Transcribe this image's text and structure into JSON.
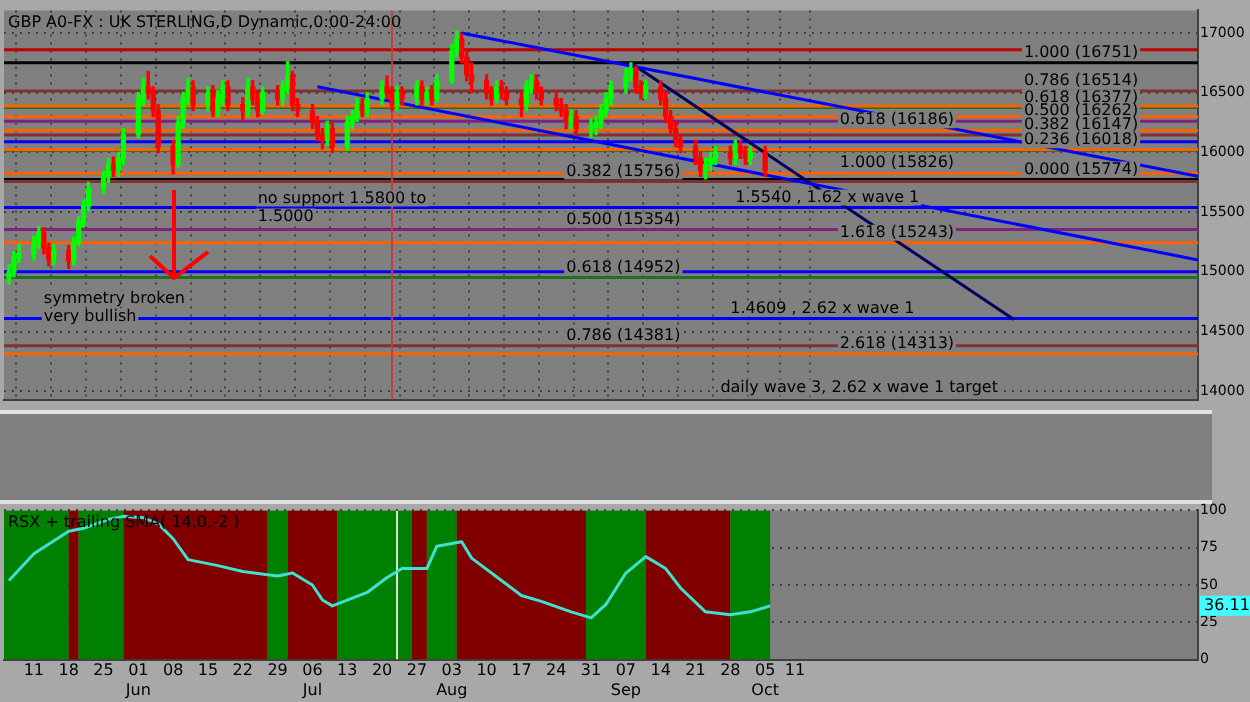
{
  "chart_data": [
    {
      "type": "candlestick",
      "title": "GBP A0-FX : UK STERLING,D Dynamic,0:00-24:00",
      "x": [
        "--05-06",
        "--05-07",
        "--05-08",
        "--05-11",
        "--05-12",
        "--05-13",
        "--05-14",
        "--05-15",
        "--05-18",
        "--05-19",
        "--05-20",
        "--05-21",
        "--05-22",
        "--05-25",
        "--05-26",
        "--05-27",
        "--05-28",
        "--05-29",
        "--06-01",
        "--06-02",
        "--06-03",
        "--06-04",
        "--06-05",
        "--06-08",
        "--06-09",
        "--06-10",
        "--06-11",
        "--06-12",
        "--06-15",
        "--06-16",
        "--06-17",
        "--06-18",
        "--06-19",
        "--06-22",
        "--06-23",
        "--06-24",
        "--06-25",
        "--06-26",
        "--06-29",
        "--06-30",
        "--07-01",
        "--07-02",
        "--07-03",
        "--07-06",
        "--07-07",
        "--07-08",
        "--07-09",
        "--07-10",
        "--07-13",
        "--07-14",
        "--07-15",
        "--07-16",
        "--07-17",
        "--07-20",
        "--07-21",
        "--07-22",
        "--07-23",
        "--07-24",
        "--07-27",
        "--07-28",
        "--07-29",
        "--07-30",
        "--07-31",
        "--08-03",
        "--08-04",
        "--08-05",
        "--08-06",
        "--08-07",
        "--08-10",
        "--08-11",
        "--08-12",
        "--08-13",
        "--08-14",
        "--08-17",
        "--08-18",
        "--08-19",
        "--08-20",
        "--08-21",
        "--08-24",
        "--08-25",
        "--08-26",
        "--08-27",
        "--08-28",
        "--08-31",
        "--09-01",
        "--09-02",
        "--09-03",
        "--09-04",
        "--09-07",
        "--09-08",
        "--09-09",
        "--09-10",
        "--09-11",
        "--09-14",
        "--09-15",
        "--09-16",
        "--09-17",
        "--09-18",
        "--09-21",
        "--09-22",
        "--09-23",
        "--09-24",
        "--09-25",
        "--09-28",
        "--09-29",
        "--09-30",
        "--10-01",
        "--10-02",
        "--10-05"
      ],
      "ohlc": [
        [
          14950,
          15060,
          14900,
          15000
        ],
        [
          15000,
          15170,
          14960,
          15120
        ],
        [
          15120,
          15230,
          15080,
          15150
        ],
        [
          15150,
          15300,
          15100,
          15250
        ],
        [
          15250,
          15380,
          15200,
          15330
        ],
        [
          15330,
          15370,
          15150,
          15200
        ],
        [
          15200,
          15240,
          15050,
          15100
        ],
        [
          15100,
          15230,
          15060,
          15180
        ],
        [
          15180,
          15220,
          15030,
          15090
        ],
        [
          15090,
          15290,
          15060,
          15250
        ],
        [
          15250,
          15460,
          15220,
          15420
        ],
        [
          15420,
          15600,
          15380,
          15550
        ],
        [
          15550,
          15750,
          15510,
          15700
        ],
        [
          15700,
          15840,
          15660,
          15800
        ],
        [
          15800,
          15950,
          15750,
          15900
        ],
        [
          15900,
          15960,
          15800,
          15850
        ],
        [
          15850,
          16000,
          15800,
          15950
        ],
        [
          15950,
          16200,
          15900,
          16150
        ],
        [
          16150,
          16500,
          16120,
          16450
        ],
        [
          16450,
          16620,
          16400,
          16550
        ],
        [
          16550,
          16680,
          16450,
          16500
        ],
        [
          16500,
          16550,
          16300,
          16350
        ],
        [
          16350,
          16400,
          16000,
          16050
        ],
        [
          16050,
          16100,
          15820,
          15900
        ],
        [
          15900,
          16300,
          15880,
          16250
        ],
        [
          16250,
          16500,
          16200,
          16450
        ],
        [
          16450,
          16620,
          16400,
          16550
        ],
        [
          16550,
          16600,
          16350,
          16400
        ],
        [
          16400,
          16550,
          16350,
          16500
        ],
        [
          16500,
          16560,
          16300,
          16350
        ],
        [
          16350,
          16520,
          16300,
          16450
        ],
        [
          16450,
          16600,
          16400,
          16550
        ],
        [
          16550,
          16600,
          16350,
          16400
        ],
        [
          16400,
          16460,
          16280,
          16350
        ],
        [
          16350,
          16620,
          16300,
          16550
        ],
        [
          16550,
          16600,
          16400,
          16450
        ],
        [
          16450,
          16500,
          16300,
          16350
        ],
        [
          16350,
          16550,
          16320,
          16500
        ],
        [
          16500,
          16560,
          16400,
          16450
        ],
        [
          16450,
          16600,
          16400,
          16550
        ],
        [
          16550,
          16760,
          16500,
          16650
        ],
        [
          16650,
          16680,
          16350,
          16400
        ],
        [
          16400,
          16450,
          16300,
          16350
        ],
        [
          16350,
          16400,
          16200,
          16250
        ],
        [
          16250,
          16300,
          16100,
          16150
        ],
        [
          16150,
          16200,
          16030,
          16100
        ],
        [
          16100,
          16260,
          16060,
          16200
        ],
        [
          16200,
          16250,
          16000,
          16050
        ],
        [
          16050,
          16300,
          16020,
          16250
        ],
        [
          16250,
          16350,
          16200,
          16300
        ],
        [
          16300,
          16450,
          16260,
          16400
        ],
        [
          16400,
          16450,
          16300,
          16350
        ],
        [
          16350,
          16500,
          16300,
          16450
        ],
        [
          16450,
          16600,
          16400,
          16550
        ],
        [
          16550,
          16640,
          16450,
          16500
        ],
        [
          16500,
          16550,
          16350,
          16400
        ],
        [
          16400,
          16550,
          16350,
          16500
        ],
        [
          16500,
          16550,
          16400,
          16450
        ],
        [
          16450,
          16600,
          16400,
          16550
        ],
        [
          16550,
          16600,
          16400,
          16450
        ],
        [
          16450,
          16550,
          16400,
          16500
        ],
        [
          16500,
          16560,
          16400,
          16450
        ],
        [
          16450,
          16650,
          16420,
          16600
        ],
        [
          16600,
          16900,
          16580,
          16850
        ],
        [
          16850,
          17020,
          16800,
          16950
        ],
        [
          16950,
          16990,
          16750,
          16800
        ],
        [
          16800,
          16850,
          16600,
          16650
        ],
        [
          16650,
          16750,
          16500,
          16600
        ],
        [
          16600,
          16650,
          16450,
          16500
        ],
        [
          16500,
          16550,
          16400,
          16450
        ],
        [
          16450,
          16600,
          16420,
          16550
        ],
        [
          16550,
          16600,
          16450,
          16500
        ],
        [
          16500,
          16550,
          16400,
          16450
        ],
        [
          16450,
          16500,
          16300,
          16400
        ],
        [
          16400,
          16600,
          16350,
          16550
        ],
        [
          16550,
          16650,
          16500,
          16600
        ],
        [
          16600,
          16650,
          16450,
          16500
        ],
        [
          16500,
          16550,
          16400,
          16450
        ],
        [
          16450,
          16500,
          16350,
          16400
        ],
        [
          16400,
          16450,
          16300,
          16350
        ],
        [
          16350,
          16400,
          16200,
          16250
        ],
        [
          16250,
          16350,
          16200,
          16300
        ],
        [
          16300,
          16350,
          16150,
          16200
        ],
        [
          16200,
          16280,
          16130,
          16210
        ],
        [
          16210,
          16300,
          16150,
          16250
        ],
        [
          16250,
          16400,
          16200,
          16350
        ],
        [
          16350,
          16500,
          16300,
          16450
        ],
        [
          16450,
          16600,
          16400,
          16550
        ],
        [
          16550,
          16700,
          16500,
          16650
        ],
        [
          16650,
          16750,
          16600,
          16700
        ],
        [
          16700,
          16720,
          16500,
          16550
        ],
        [
          16550,
          16600,
          16450,
          16500
        ],
        [
          16500,
          16600,
          16450,
          16550
        ],
        [
          16550,
          16600,
          16400,
          16450
        ],
        [
          16450,
          16500,
          16250,
          16300
        ],
        [
          16300,
          16350,
          16150,
          16200
        ],
        [
          16200,
          16250,
          16050,
          16100
        ],
        [
          16100,
          16150,
          16000,
          16050
        ],
        [
          16050,
          16100,
          15900,
          15950
        ],
        [
          15950,
          16000,
          15800,
          15850
        ],
        [
          15850,
          15950,
          15780,
          15900
        ],
        [
          15900,
          16000,
          15850,
          15950
        ],
        [
          15950,
          16050,
          15900,
          16000
        ],
        [
          16000,
          16050,
          15900,
          15950
        ],
        [
          15950,
          16100,
          15900,
          16050
        ],
        [
          16050,
          16100,
          15950,
          16000
        ],
        [
          16000,
          16050,
          15900,
          15950
        ],
        [
          15950,
          16050,
          15900,
          16000
        ],
        [
          16000,
          16050,
          15800,
          15850
        ]
      ],
      "colors": [
        "#00ff00",
        "#00ff00",
        "#00ff00",
        "#00ff00",
        "#00ff00",
        "#ff0000",
        "#ff0000",
        "#00ff00",
        "#ff0000",
        "#00ff00",
        "#00ff00",
        "#00ff00",
        "#00ff00",
        "#00ff00",
        "#00ff00",
        "#ff0000",
        "#00ff00",
        "#00ff00",
        "#00ff00",
        "#00ff00",
        "#ff0000",
        "#ff0000",
        "#ff0000",
        "#ff0000",
        "#00ff00",
        "#00ff00",
        "#00ff00",
        "#ff0000",
        "#00ff00",
        "#ff0000",
        "#00ff00",
        "#00ff00",
        "#ff0000",
        "#ff0000",
        "#00ff00",
        "#ff0000",
        "#ff0000",
        "#00ff00",
        "#ff0000",
        "#00ff00",
        "#00ff00",
        "#ff0000",
        "#ff0000",
        "#ff0000",
        "#ff0000",
        "#ff0000",
        "#00ff00",
        "#ff0000",
        "#00ff00",
        "#00ff00",
        "#00ff00",
        "#ff0000",
        "#00ff00",
        "#00ff00",
        "#ff0000",
        "#ff0000",
        "#00ff00",
        "#ff0000",
        "#00ff00",
        "#ff0000",
        "#00ff00",
        "#ff0000",
        "#00ff00",
        "#00ff00",
        "#00ff00",
        "#ff0000",
        "#ff0000",
        "#ff0000",
        "#ff0000",
        "#ff0000",
        "#00ff00",
        "#ff0000",
        "#ff0000",
        "#ff0000",
        "#00ff00",
        "#00ff00",
        "#ff0000",
        "#ff0000",
        "#ff0000",
        "#ff0000",
        "#ff0000",
        "#00ff00",
        "#ff0000",
        "#00ff00",
        "#00ff00",
        "#00ff00",
        "#00ff00",
        "#00ff00",
        "#00ff00",
        "#00ff00",
        "#ff0000",
        "#ff0000",
        "#00ff00",
        "#ff0000",
        "#ff0000",
        "#ff0000",
        "#ff0000",
        "#ff0000",
        "#ff0000",
        "#ff0000",
        "#00ff00",
        "#00ff00",
        "#00ff00",
        "#ff0000",
        "#00ff00",
        "#ff0000",
        "#ff0000",
        "#00ff00",
        "#ff0000"
      ],
      "series": [
        {
          "type": "line",
          "color": "#0000ff",
          "x": [
            "--08-05",
            "--12-31"
          ],
          "values": [
            17000,
            15800
          ]
        },
        {
          "type": "line",
          "color": "#0000ff",
          "x": [
            "--07-07",
            "--12-31"
          ],
          "values": [
            16550,
            15100
          ]
        },
        {
          "type": "line",
          "color": "#000060",
          "x": [
            "--09-08",
            "--11-24"
          ],
          "values": [
            16750,
            14600
          ]
        }
      ],
      "xlim": [
        "--05-05",
        "--12-31"
      ],
      "ylim": [
        13930,
        17190
      ],
      "xticks": [
        {
          "value": "--05-11",
          "label": null
        },
        {
          "value": "--05-18",
          "label": null
        },
        {
          "value": "--05-25",
          "label": null
        },
        {
          "value": "--06-01",
          "label": null
        },
        {
          "value": "--06-08",
          "label": null
        },
        {
          "value": "--06-15",
          "label": null
        },
        {
          "value": "--06-22",
          "label": null
        },
        {
          "value": "--06-29",
          "label": null
        },
        {
          "value": "--07-06",
          "label": null
        },
        {
          "value": "--07-13",
          "label": null
        },
        {
          "value": "--07-20",
          "label": null
        },
        {
          "value": "--07-27",
          "label": null
        },
        {
          "value": "--08-03",
          "label": null
        },
        {
          "value": "--08-10",
          "label": null
        },
        {
          "value": "--08-17",
          "label": null
        },
        {
          "value": "--08-24",
          "label": null
        },
        {
          "value": "--08-31",
          "label": null
        },
        {
          "value": "--09-07",
          "label": null
        },
        {
          "value": "--09-14",
          "label": null
        },
        {
          "value": "--09-21",
          "label": null
        },
        {
          "value": "--09-28",
          "label": null
        },
        {
          "value": "--10-05",
          "label": null
        },
        {
          "value": "--10-11",
          "label": null
        }
      ],
      "yticks": [
        14000,
        14500,
        15000,
        15500,
        16000,
        16500,
        17000
      ],
      "tick_labels": "y",
      "grid": true,
      "ref_lines": [
        {
          "axis": "y",
          "value": 16860,
          "color": "#c00000"
        },
        {
          "axis": "y",
          "value": 16751,
          "color": "#000000"
        },
        {
          "axis": "y",
          "value": 16514,
          "color": "#803030"
        },
        {
          "axis": "y",
          "value": 16377,
          "color": "#207020"
        },
        {
          "axis": "y",
          "value": 16262,
          "color": "#802080"
        },
        {
          "axis": "y",
          "value": 16147,
          "color": "#803030"
        },
        {
          "axis": "y",
          "value": 16018,
          "color": "#207020"
        },
        {
          "axis": "y",
          "value": 15774,
          "color": "#000000"
        },
        {
          "axis": "y",
          "value": 15756,
          "color": "#803030"
        },
        {
          "axis": "y",
          "value": 15354,
          "color": "#802080"
        },
        {
          "axis": "y",
          "value": 14952,
          "color": "#207020"
        },
        {
          "axis": "y",
          "value": 14381,
          "color": "#803030"
        },
        {
          "axis": "y",
          "value": 16390,
          "color": "#ff6000"
        },
        {
          "axis": "y",
          "value": 16300,
          "color": "#ff6000"
        },
        {
          "axis": "y",
          "value": 16186,
          "color": "#ff6000"
        },
        {
          "axis": "y",
          "value": 16025,
          "color": "#ff6000"
        },
        {
          "axis": "y",
          "value": 15826,
          "color": "#ff6000"
        },
        {
          "axis": "y",
          "value": 15243,
          "color": "#ff6000"
        },
        {
          "axis": "y",
          "value": 14313,
          "color": "#ff6000"
        },
        {
          "axis": "y",
          "value": 16090,
          "color": "#0000ff"
        },
        {
          "axis": "y",
          "value": 15540,
          "color": "#0000ff"
        },
        {
          "axis": "y",
          "value": 15000,
          "color": "#0000ff"
        },
        {
          "axis": "y",
          "value": 14609,
          "color": "#0000ff"
        },
        {
          "axis": "x",
          "value": "--07-22",
          "color": "#c04040"
        }
      ],
      "annotations": [
        {
          "text": "1.000 (16751)",
          "x": "--11-26",
          "y": 16751
        },
        {
          "text": "0.786 (16514)",
          "x": "--11-26",
          "y": 16514
        },
        {
          "text": "0.618 (16377)",
          "x": "--11-26",
          "y": 16377
        },
        {
          "text": "0.500 (16262)",
          "x": "--11-26",
          "y": 16262
        },
        {
          "text": "0.382 (16147)",
          "x": "--11-26",
          "y": 16147
        },
        {
          "text": "0.236 (16018)",
          "x": "--11-26",
          "y": 16018
        },
        {
          "text": "0.000 (15774)",
          "x": "--11-26",
          "y": 15774
        },
        {
          "text": "0.382 (15756)",
          "x": "--08-26",
          "y": 15756
        },
        {
          "text": "0.500 (15354)",
          "x": "--08-26",
          "y": 15354
        },
        {
          "text": "0.618 (14952)",
          "x": "--08-26",
          "y": 14952
        },
        {
          "text": "0.786 (14381)",
          "x": "--08-26",
          "y": 14381
        },
        {
          "text": "0.618 (16186)",
          "x": "--10-20",
          "y": 16186
        },
        {
          "text": "1.000 (15826)",
          "x": "--10-20",
          "y": 15826
        },
        {
          "text": "1.618 (15243)",
          "x": "--10-20",
          "y": 15243
        },
        {
          "text": "2.618 (14313)",
          "x": "--10-20",
          "y": 14313
        },
        {
          "text": "1.5540 , 1.62 x wave 1",
          "x": "--09-29",
          "y": 15540
        },
        {
          "text": "1.4609 , 2.62 x wave 1",
          "x": "--09-28",
          "y": 14609
        },
        {
          "text": "no support 1.5800 to\n1.5000",
          "x": "--06-25",
          "y": 15380
        },
        {
          "text": "symmetry broken\nvery bullish",
          "x": "--05-13",
          "y": 14540
        },
        "daily wave 3, 2.62 x wave 1 target"
      ]
    },
    {
      "type": "line",
      "title": "RSX + trailing SMA( 14,0,-2 )",
      "x": [
        "--05-06",
        "--05-11",
        "--05-18",
        "--05-21",
        "--05-26",
        "--05-29",
        "--06-02",
        "--06-05",
        "--06-08",
        "--06-11",
        "--06-17",
        "--06-22",
        "--06-29",
        "--07-02",
        "--07-06",
        "--07-08",
        "--07-10",
        "--07-17",
        "--07-21",
        "--07-24",
        "--07-29",
        "--07-31",
        "--08-05",
        "--08-07",
        "--08-13",
        "--08-17",
        "--08-21",
        "--08-27",
        "--08-31",
        "--09-03",
        "--09-07",
        "--09-11",
        "--09-15",
        "--09-18",
        "--09-23",
        "--09-28",
        "--10-02",
        "--10-06"
      ],
      "series": [
        {
          "color": "#40e0d0",
          "values": [
            53,
            71,
            86,
            88,
            94,
            96,
            95,
            91,
            81,
            67,
            63,
            59,
            56,
            58,
            50,
            40,
            36,
            45,
            55,
            61,
            61,
            76,
            79,
            68,
            53,
            43,
            39,
            32,
            28,
            37,
            58,
            69,
            61,
            48,
            32,
            30,
            32,
            36
          ]
        }
      ],
      "xlim": [
        "--05-05",
        "--12-31"
      ],
      "ylim": [
        0,
        100
      ],
      "xticks": [
        {
          "value": "--05-11",
          "label": "11"
        },
        {
          "value": "--05-18",
          "label": "18"
        },
        {
          "value": "--05-25",
          "label": "25"
        },
        {
          "value": "--06-01",
          "label": "01\nJun"
        },
        {
          "value": "--06-08",
          "label": "08"
        },
        {
          "value": "--06-15",
          "label": "15"
        },
        {
          "value": "--06-22",
          "label": "22"
        },
        {
          "value": "--06-29",
          "label": "29"
        },
        {
          "value": "--07-06",
          "label": "06\nJul"
        },
        {
          "value": "--07-13",
          "label": "13"
        },
        {
          "value": "--07-20",
          "label": "20"
        },
        {
          "value": "--07-27",
          "label": "27"
        },
        {
          "value": "--08-03",
          "label": "03\nAug"
        },
        {
          "value": "--08-10",
          "label": "10"
        },
        {
          "value": "--08-17",
          "label": "17"
        },
        {
          "value": "--08-24",
          "label": "24"
        },
        {
          "value": "--08-31",
          "label": "31"
        },
        {
          "value": "--09-07",
          "label": "07\nSep"
        },
        {
          "value": "--09-14",
          "label": "14"
        },
        {
          "value": "--09-21",
          "label": "21"
        },
        {
          "value": "--09-28",
          "label": "28"
        },
        {
          "value": "--10-05",
          "label": "05\nOct"
        },
        {
          "value": "--10-11",
          "label": "11"
        }
      ],
      "yticks": [
        0,
        25,
        50,
        75,
        100
      ],
      "grid": "y",
      "bands": [
        {
          "axis": "x",
          "from": "--05-05",
          "to": "--05-18",
          "color": "#008000"
        },
        {
          "axis": "x",
          "from": "--05-18",
          "to": "--05-20",
          "color": "#800000"
        },
        {
          "axis": "x",
          "from": "--05-20",
          "to": "--05-29",
          "color": "#008000"
        },
        {
          "axis": "x",
          "from": "--05-29",
          "to": "--06-27",
          "color": "#800000"
        },
        {
          "axis": "x",
          "from": "--06-27",
          "to": "--07-01",
          "color": "#008000"
        },
        {
          "axis": "x",
          "from": "--07-01",
          "to": "--07-11",
          "color": "#800000"
        },
        {
          "axis": "x",
          "from": "--07-11",
          "to": "--07-26",
          "color": "#008000"
        },
        {
          "axis": "x",
          "from": "--07-26",
          "to": "--07-29",
          "color": "#800000"
        },
        {
          "axis": "x",
          "from": "--07-29",
          "to": "--08-04",
          "color": "#008000"
        },
        {
          "axis": "x",
          "from": "--08-04",
          "to": "--08-30",
          "color": "#800000"
        },
        {
          "axis": "x",
          "from": "--08-30",
          "to": "--09-11",
          "color": "#008000"
        },
        {
          "axis": "x",
          "from": "--09-11",
          "to": "--09-28",
          "color": "#800000"
        },
        {
          "axis": "x",
          "from": "--09-28",
          "to": "--10-06",
          "color": "#008000"
        }
      ],
      "ref_lines": [
        {
          "axis": "x",
          "value": "--07-23",
          "color": "#e0e0e0"
        }
      ],
      "annotations": [
        {
          "text": "36.11",
          "y": 36.11
        }
      ]
    }
  ]
}
